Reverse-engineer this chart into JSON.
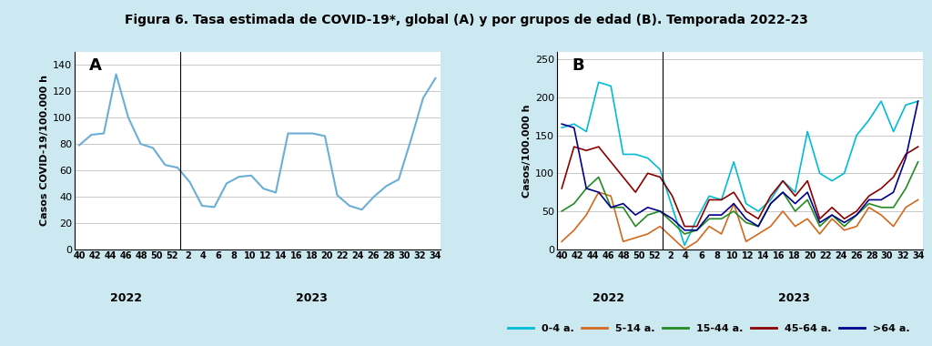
{
  "title": "Figura 6. Tasa estimada de COVID-19*, global (A) y por grupos de edad (B). Temporada 2022-23",
  "title_fontsize": 10,
  "background_color": "#cce8f0",
  "plot_bg": "#ffffff",
  "panel_A_label": "A",
  "panel_A_ylabel": "Casos COVID-19/100.000 h",
  "panel_A_ylim": [
    0,
    150
  ],
  "panel_A_yticks": [
    0,
    20,
    40,
    60,
    80,
    100,
    120,
    140
  ],
  "panel_A_color": "#6baed6",
  "x_labels": [
    "40",
    "42",
    "44",
    "46",
    "48",
    "50",
    "52",
    "2",
    "4",
    "6",
    "8",
    "10",
    "12",
    "14",
    "16",
    "18",
    "20",
    "22",
    "24",
    "26",
    "28",
    "30",
    "32",
    "34"
  ],
  "global_y": [
    79,
    87,
    88,
    133,
    100,
    80,
    77,
    64,
    62,
    51,
    33,
    32,
    50,
    55,
    56,
    46,
    43,
    88,
    88,
    88,
    86,
    41,
    33,
    30,
    40,
    48,
    53,
    83,
    115,
    130
  ],
  "panel_B_label": "B",
  "panel_B_ylabel": "Casos/100.000 h",
  "panel_B_ylim": [
    0,
    260
  ],
  "panel_B_yticks": [
    0,
    50,
    100,
    150,
    200,
    250
  ],
  "age_0_4": [
    160,
    165,
    155,
    220,
    215,
    125,
    125,
    120,
    105,
    55,
    5,
    40,
    70,
    65,
    115,
    60,
    50,
    65,
    90,
    75,
    155,
    100,
    90,
    100,
    150,
    170,
    195,
    155,
    190,
    195
  ],
  "age_5_14": [
    10,
    25,
    45,
    75,
    70,
    10,
    15,
    20,
    30,
    15,
    0,
    10,
    30,
    20,
    60,
    10,
    20,
    30,
    50,
    30,
    40,
    20,
    40,
    25,
    30,
    55,
    45,
    30,
    55,
    65
  ],
  "age_15_44": [
    50,
    60,
    80,
    95,
    55,
    55,
    30,
    45,
    50,
    35,
    20,
    25,
    40,
    40,
    50,
    35,
    30,
    60,
    75,
    50,
    65,
    30,
    45,
    30,
    45,
    60,
    55,
    55,
    80,
    115
  ],
  "age_45_64": [
    80,
    135,
    130,
    135,
    115,
    95,
    75,
    100,
    95,
    70,
    30,
    30,
    65,
    65,
    75,
    50,
    40,
    70,
    90,
    70,
    90,
    40,
    55,
    40,
    50,
    70,
    80,
    95,
    125,
    135
  ],
  "age_gt64": [
    165,
    160,
    80,
    75,
    55,
    60,
    45,
    55,
    50,
    40,
    25,
    25,
    45,
    45,
    60,
    40,
    30,
    60,
    75,
    60,
    75,
    35,
    45,
    35,
    45,
    65,
    65,
    75,
    120,
    195
  ],
  "color_0_4": "#00bcd4",
  "color_5_14": "#d2691e",
  "color_15_44": "#228b22",
  "color_45_64": "#8b0000",
  "color_gt64": "#00008b",
  "legend_labels": [
    "0-4 a.",
    "5-14 a.",
    "15-44 a.",
    "45-64 a.",
    ">64 a."
  ]
}
